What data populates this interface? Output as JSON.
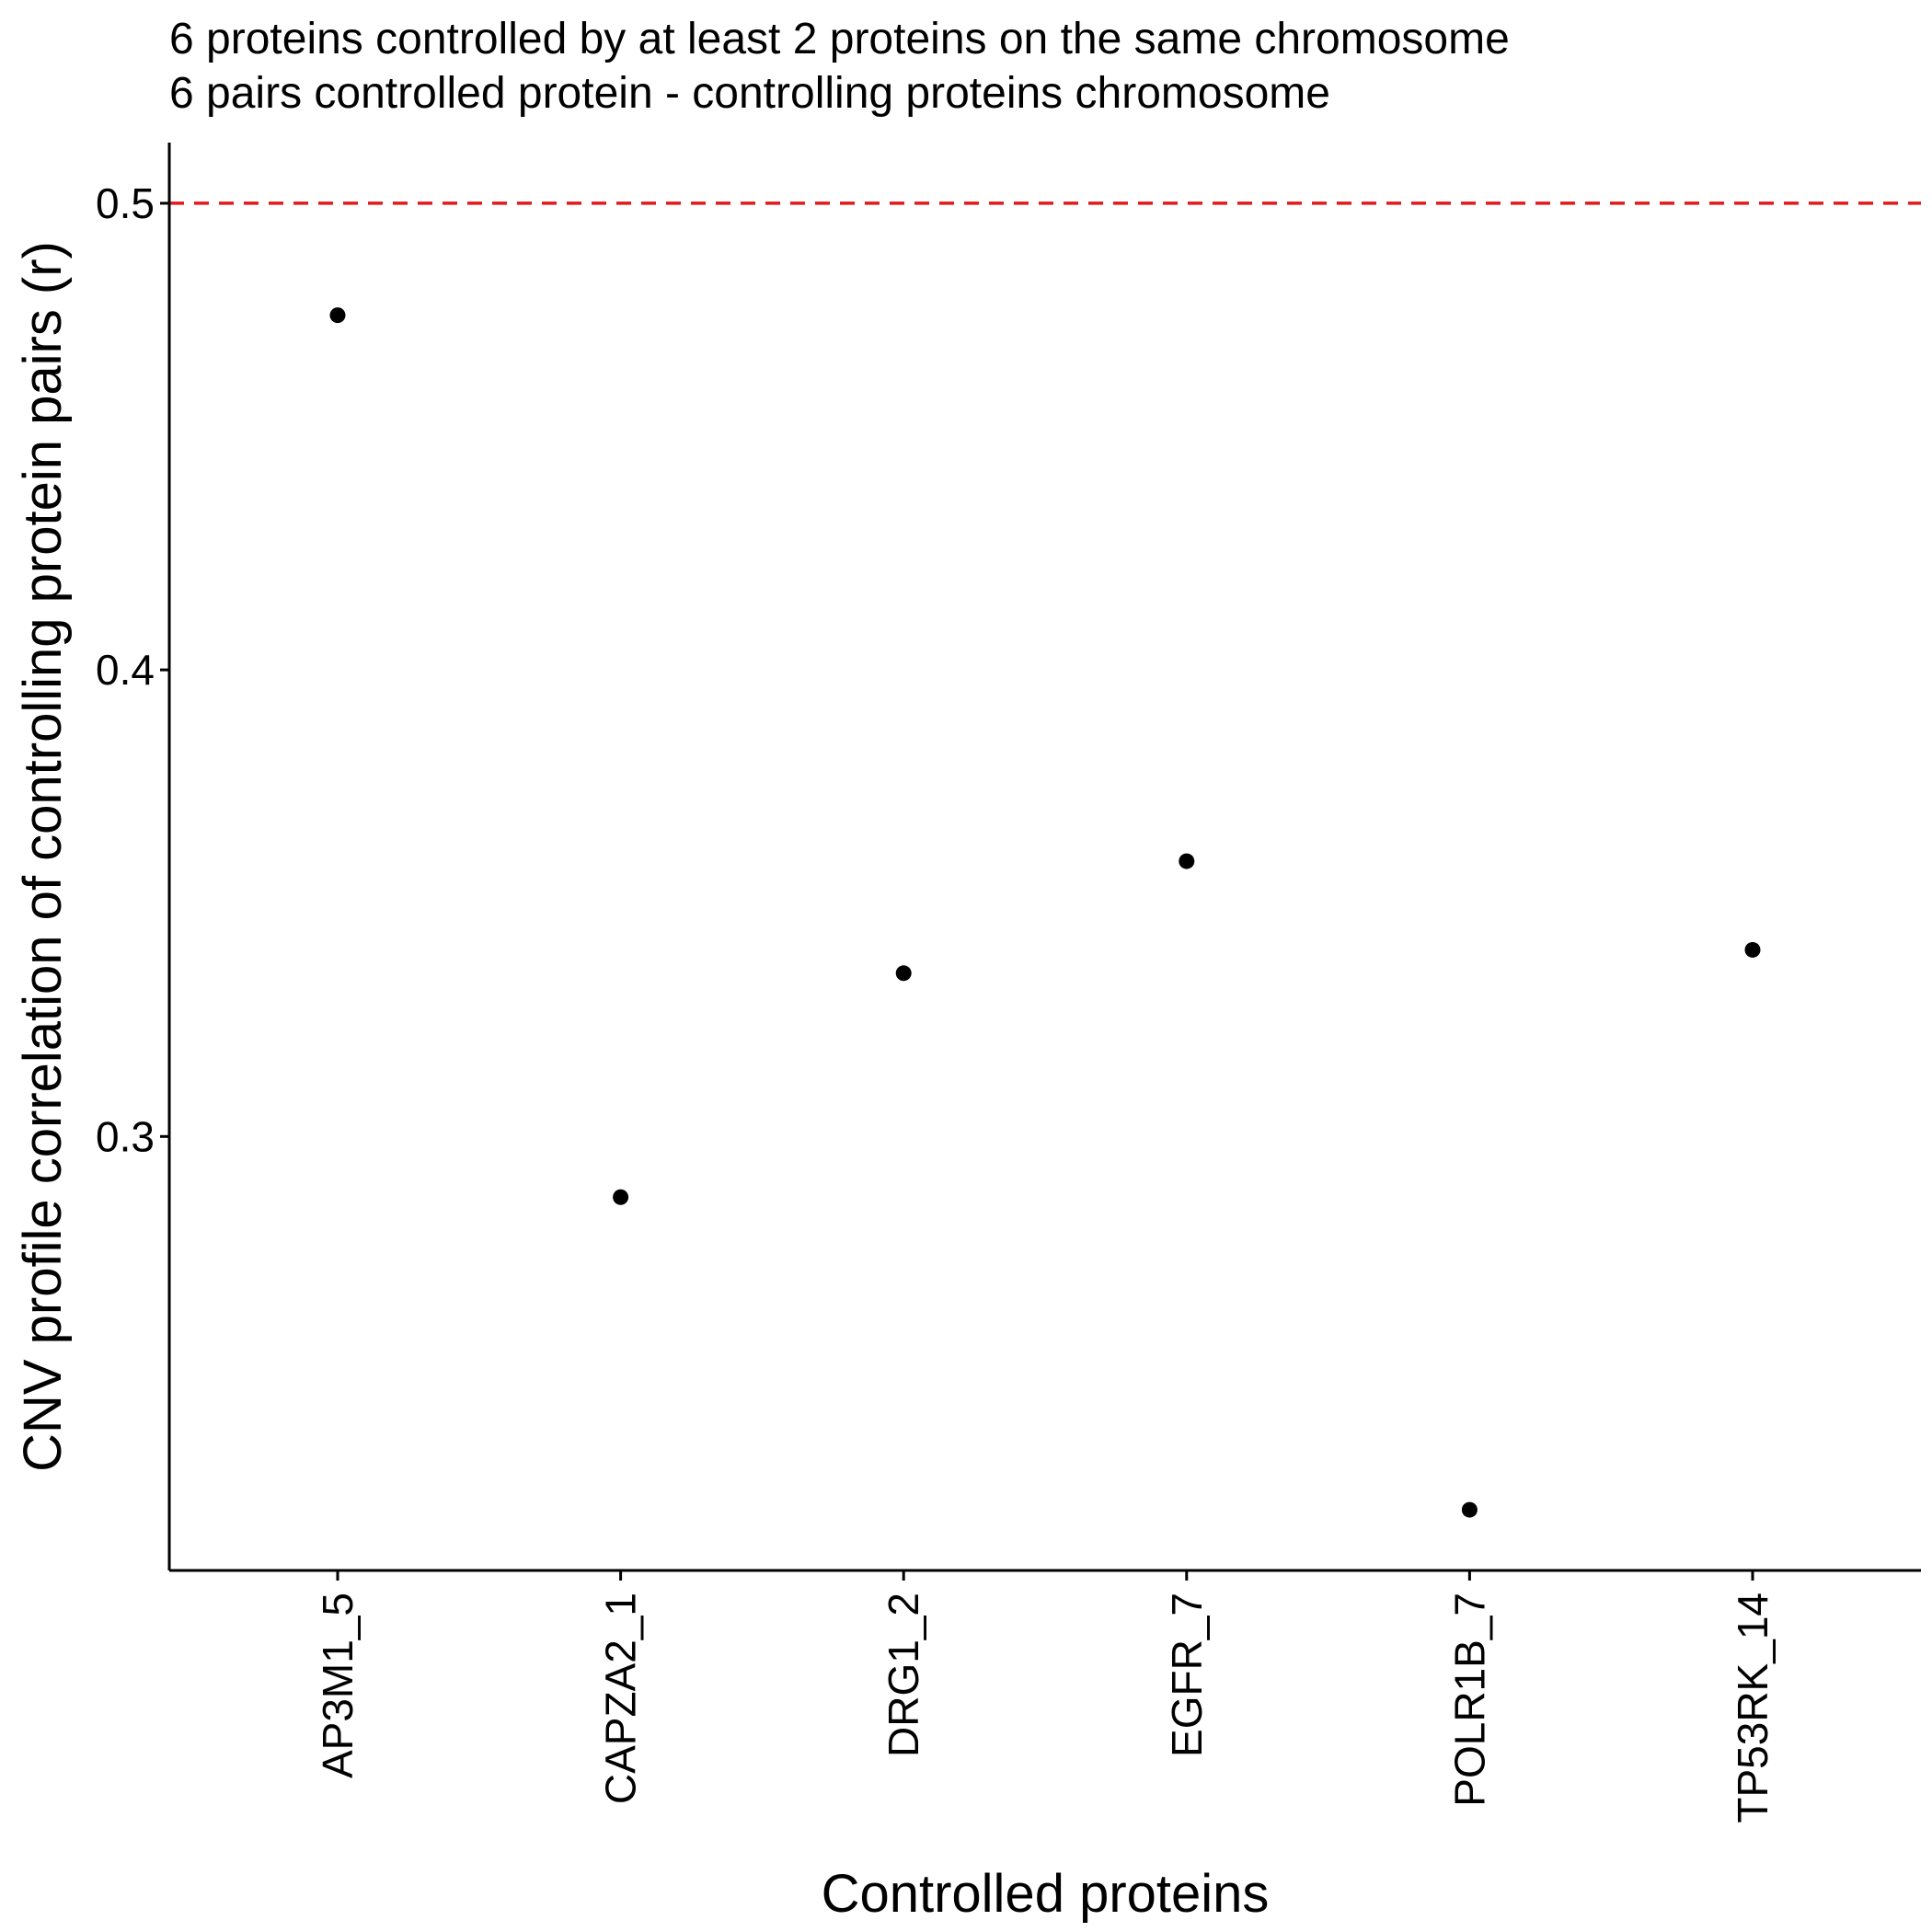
{
  "title": "6 proteins controlled by at least 2 proteins on the same chromosome",
  "subtitle": "6 pairs controlled protein - controlling proteins chromosome",
  "chart_data": {
    "type": "scatter",
    "title": "6 proteins controlled by at least 2 proteins on the same chromosome",
    "subtitle": "6 pairs controlled protein - controlling proteins chromosome",
    "xlabel": "Controlled proteins",
    "ylabel": "CNV profile correlation of controlling protein pairs (r)",
    "categories": [
      "AP3M1_5",
      "CAPZA2_1",
      "DRG1_2",
      "EGFR_7",
      "POLR1B_7",
      "TP53RK_14"
    ],
    "values": [
      0.476,
      0.287,
      0.335,
      0.359,
      0.22,
      0.34
    ],
    "ylim": [
      0.207,
      0.513
    ],
    "yticks": [
      0.3,
      0.4,
      0.5
    ],
    "ytick_labels": [
      "0.3",
      "0.4",
      "0.5"
    ],
    "reference_line": {
      "y": 0.5,
      "style": "dashed",
      "color": "#e31a1c"
    },
    "grid": false,
    "legend": "none",
    "point_color": "#000000"
  }
}
